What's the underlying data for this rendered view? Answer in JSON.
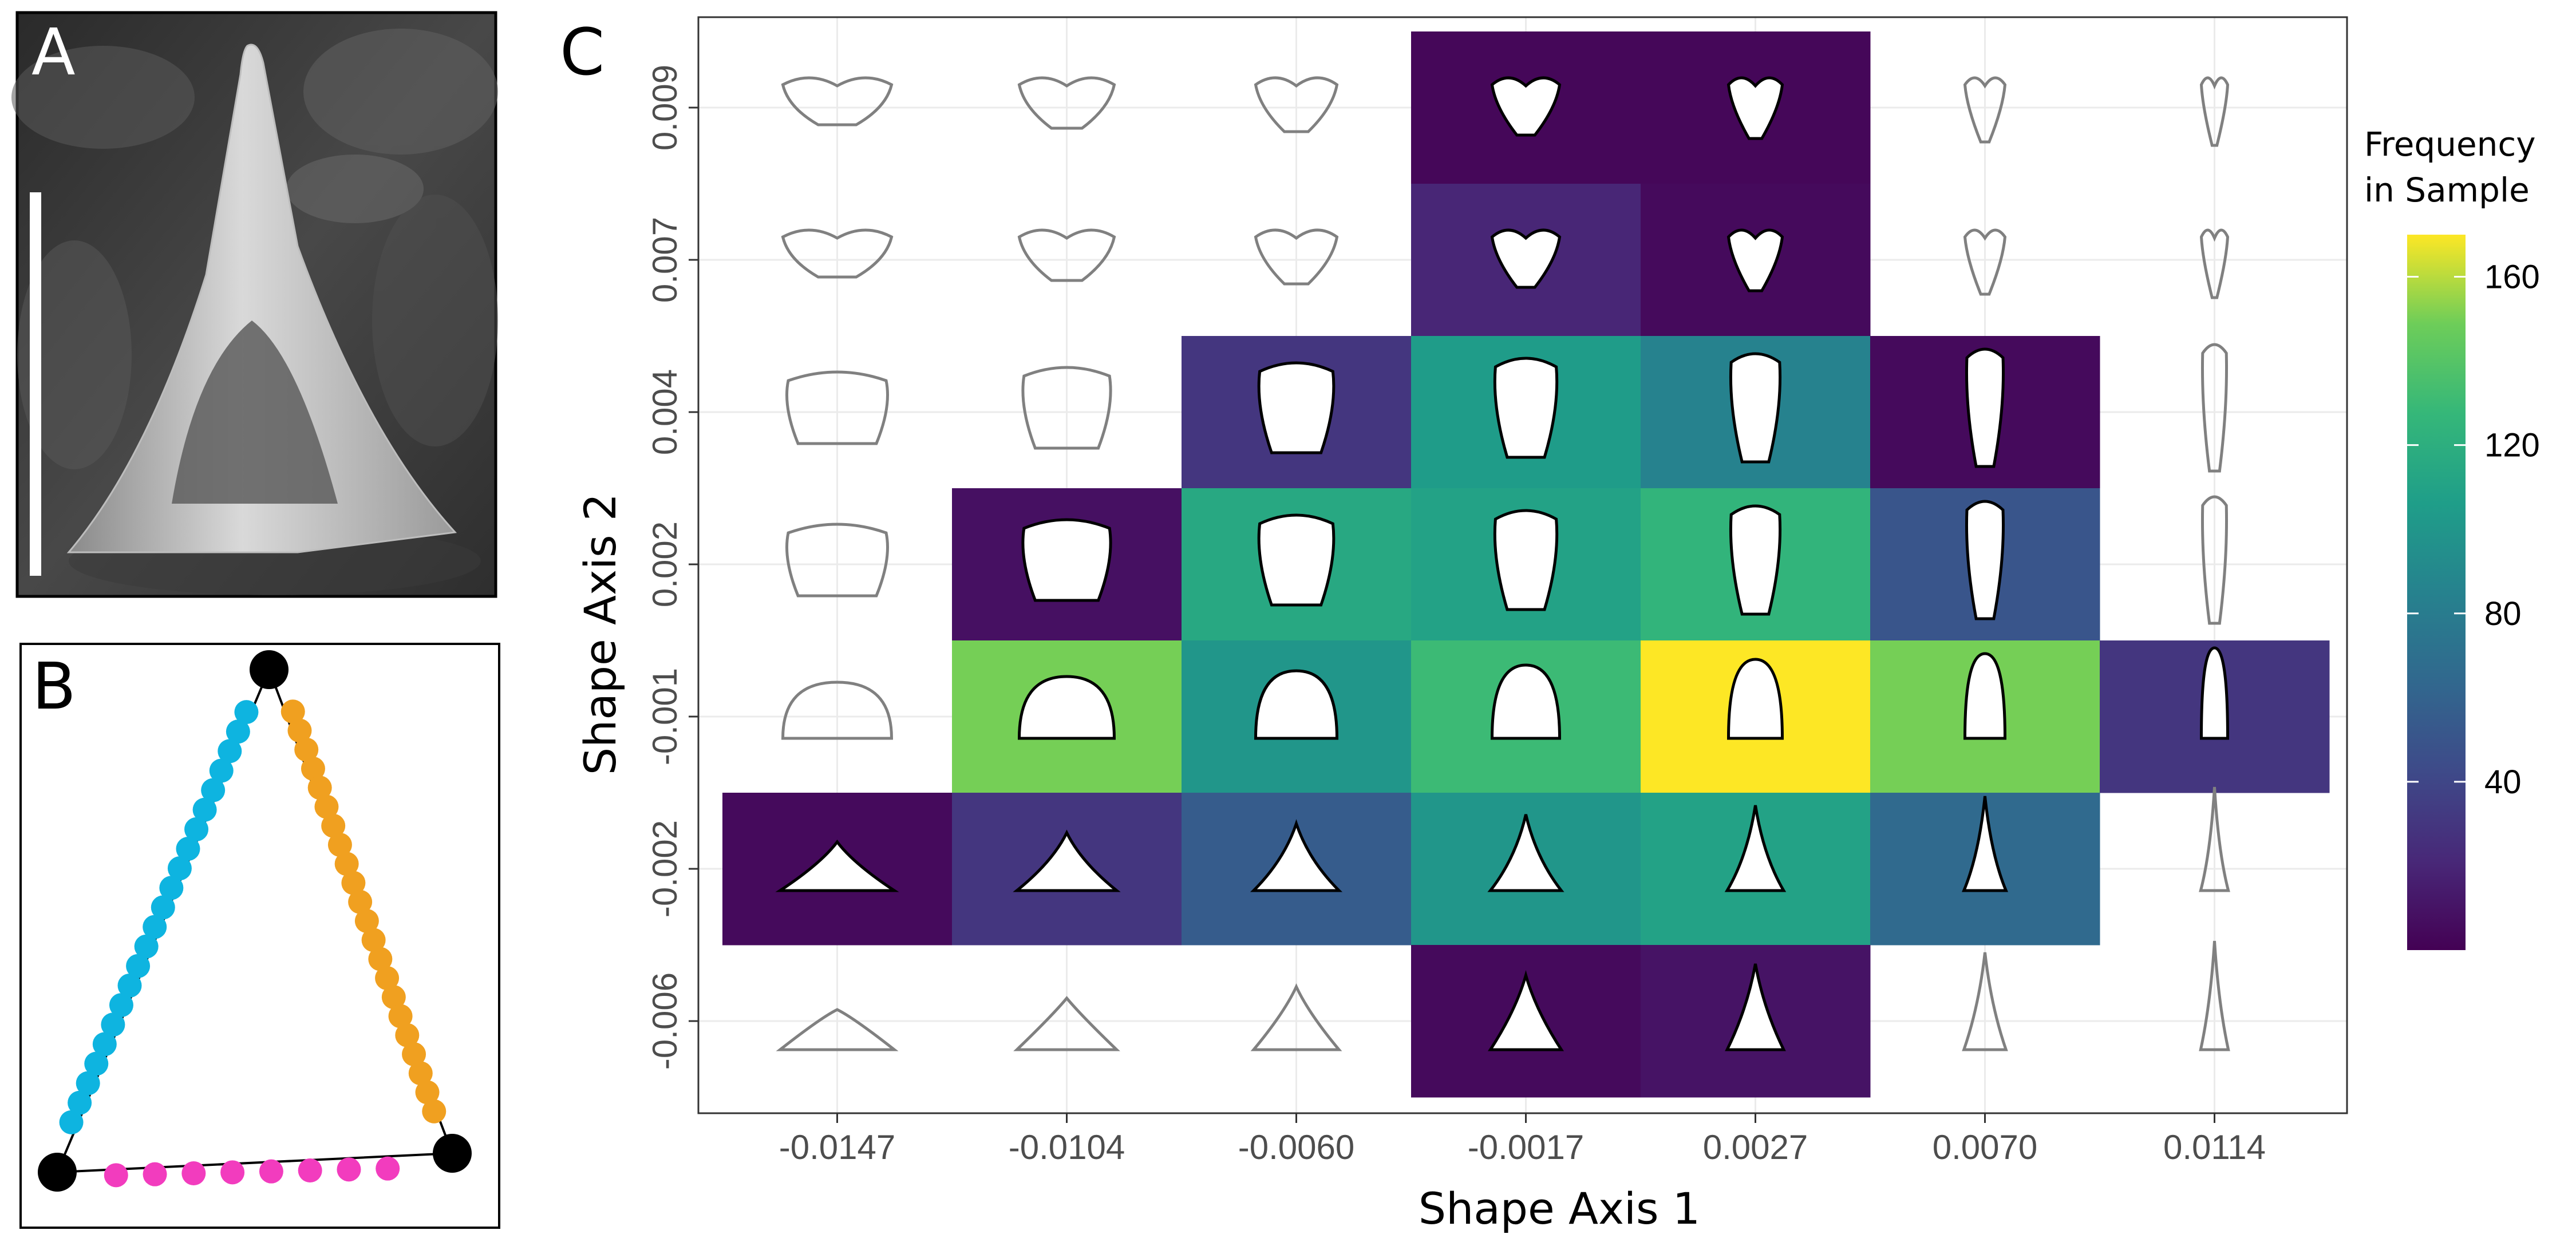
{
  "panels": {
    "a": {
      "label": "A"
    },
    "b": {
      "label": "B"
    },
    "c": {
      "label": "C"
    }
  },
  "chart_data": {
    "type": "heatmap",
    "title": "",
    "xlabel": "Shape Axis 1",
    "ylabel": "Shape Axis 2",
    "x_categories": [
      "-0.0147",
      "-0.0104",
      "-0.0060",
      "-0.0017",
      "0.0027",
      "0.0070",
      "0.0114"
    ],
    "y_categories": [
      "0.009",
      "0.007",
      "0.004",
      "0.002",
      "-0.001",
      "-0.002",
      "-0.006"
    ],
    "values": [
      [
        null,
        null,
        null,
        3,
        3,
        null,
        null
      ],
      [
        null,
        null,
        null,
        20,
        5,
        null,
        null
      ],
      [
        null,
        null,
        30,
        105,
        85,
        5,
        null
      ],
      [
        null,
        8,
        115,
        110,
        125,
        50,
        null
      ],
      [
        null,
        150,
        100,
        130,
        170,
        150,
        30
      ],
      [
        5,
        30,
        55,
        100,
        110,
        65,
        null
      ],
      [
        null,
        null,
        null,
        5,
        10,
        null,
        null
      ]
    ],
    "colorscale": "viridis",
    "color_range": [
      0,
      170
    ],
    "legend": {
      "title_line1": "Frequency",
      "title_line2": "in Sample",
      "ticks": [
        "160",
        "120",
        "80",
        "40"
      ],
      "placement": "right"
    },
    "shape_outline_colors": {
      "observed": "#000000",
      "unobserved": "#808080"
    },
    "grid": true
  },
  "landmark_colors": {
    "left": "#0EB4E0",
    "right": "#F0A020",
    "base": "#F23CBE",
    "anchor": "#000000"
  }
}
